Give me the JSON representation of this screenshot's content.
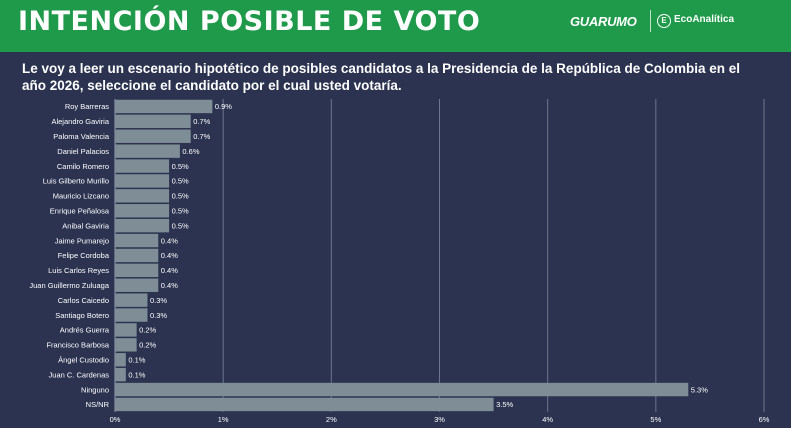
{
  "header": {
    "title": "INTENCIÓN POSIBLE DE VOTO",
    "brand_primary": "GUARUMO",
    "brand_secondary": "EcoAnalítica",
    "brand_secondary_mark": "E"
  },
  "question": "Le voy a leer un escenario hipotético de posibles candidatos a la Presidencia de la República de Colombia en el año 2026, seleccione el candidato por el cual usted votaría.",
  "colors": {
    "header_bg": "#1f9a4a",
    "page_bg": "#2b3350",
    "bar": "#7e8d96",
    "gridline": "#6c7590"
  },
  "chart_data": {
    "type": "bar",
    "orientation": "horizontal",
    "categories": [
      "Roy Barreras",
      "Alejandro Gaviria",
      "Paloma Valencia",
      "Daniel Palacios",
      "Camilo Romero",
      "Luis Gilberto Murillo",
      "Mauricio Lizcano",
      "Enrique Peñalosa",
      "Anibal Gaviria",
      "Jaime Pumarejo",
      "Felipe Cordoba",
      "Luis Carlos Reyes",
      "Juan Guillermo Zuluaga",
      "Carlos Caicedo",
      "Santiago Botero",
      "Andrés Guerra",
      "Francisco Barbosa",
      "Ángel Custodio",
      "Juan C. Cardenas",
      "Ninguno",
      "NS/NR"
    ],
    "values": [
      0.9,
      0.7,
      0.7,
      0.6,
      0.5,
      0.5,
      0.5,
      0.5,
      0.5,
      0.4,
      0.4,
      0.4,
      0.4,
      0.3,
      0.3,
      0.2,
      0.2,
      0.1,
      0.1,
      5.3,
      3.5
    ],
    "value_labels": [
      "0.9%",
      "0.7%",
      "0.7%",
      "0.6%",
      "0.5%",
      "0.5%",
      "0.5%",
      "0.5%",
      "0.5%",
      "0.4%",
      "0.4%",
      "0.4%",
      "0.4%",
      "0.3%",
      "0.3%",
      "0.2%",
      "0.2%",
      "0.1%",
      "0.1%",
      "5.3%",
      "3.5%"
    ],
    "x_ticks": [
      0,
      1,
      2,
      3,
      4,
      5,
      6
    ],
    "x_tick_labels": [
      "0%",
      "1%",
      "2%",
      "3%",
      "4%",
      "5%",
      "6%"
    ],
    "xlim": [
      0,
      6
    ],
    "grid": true,
    "legend": "none"
  }
}
